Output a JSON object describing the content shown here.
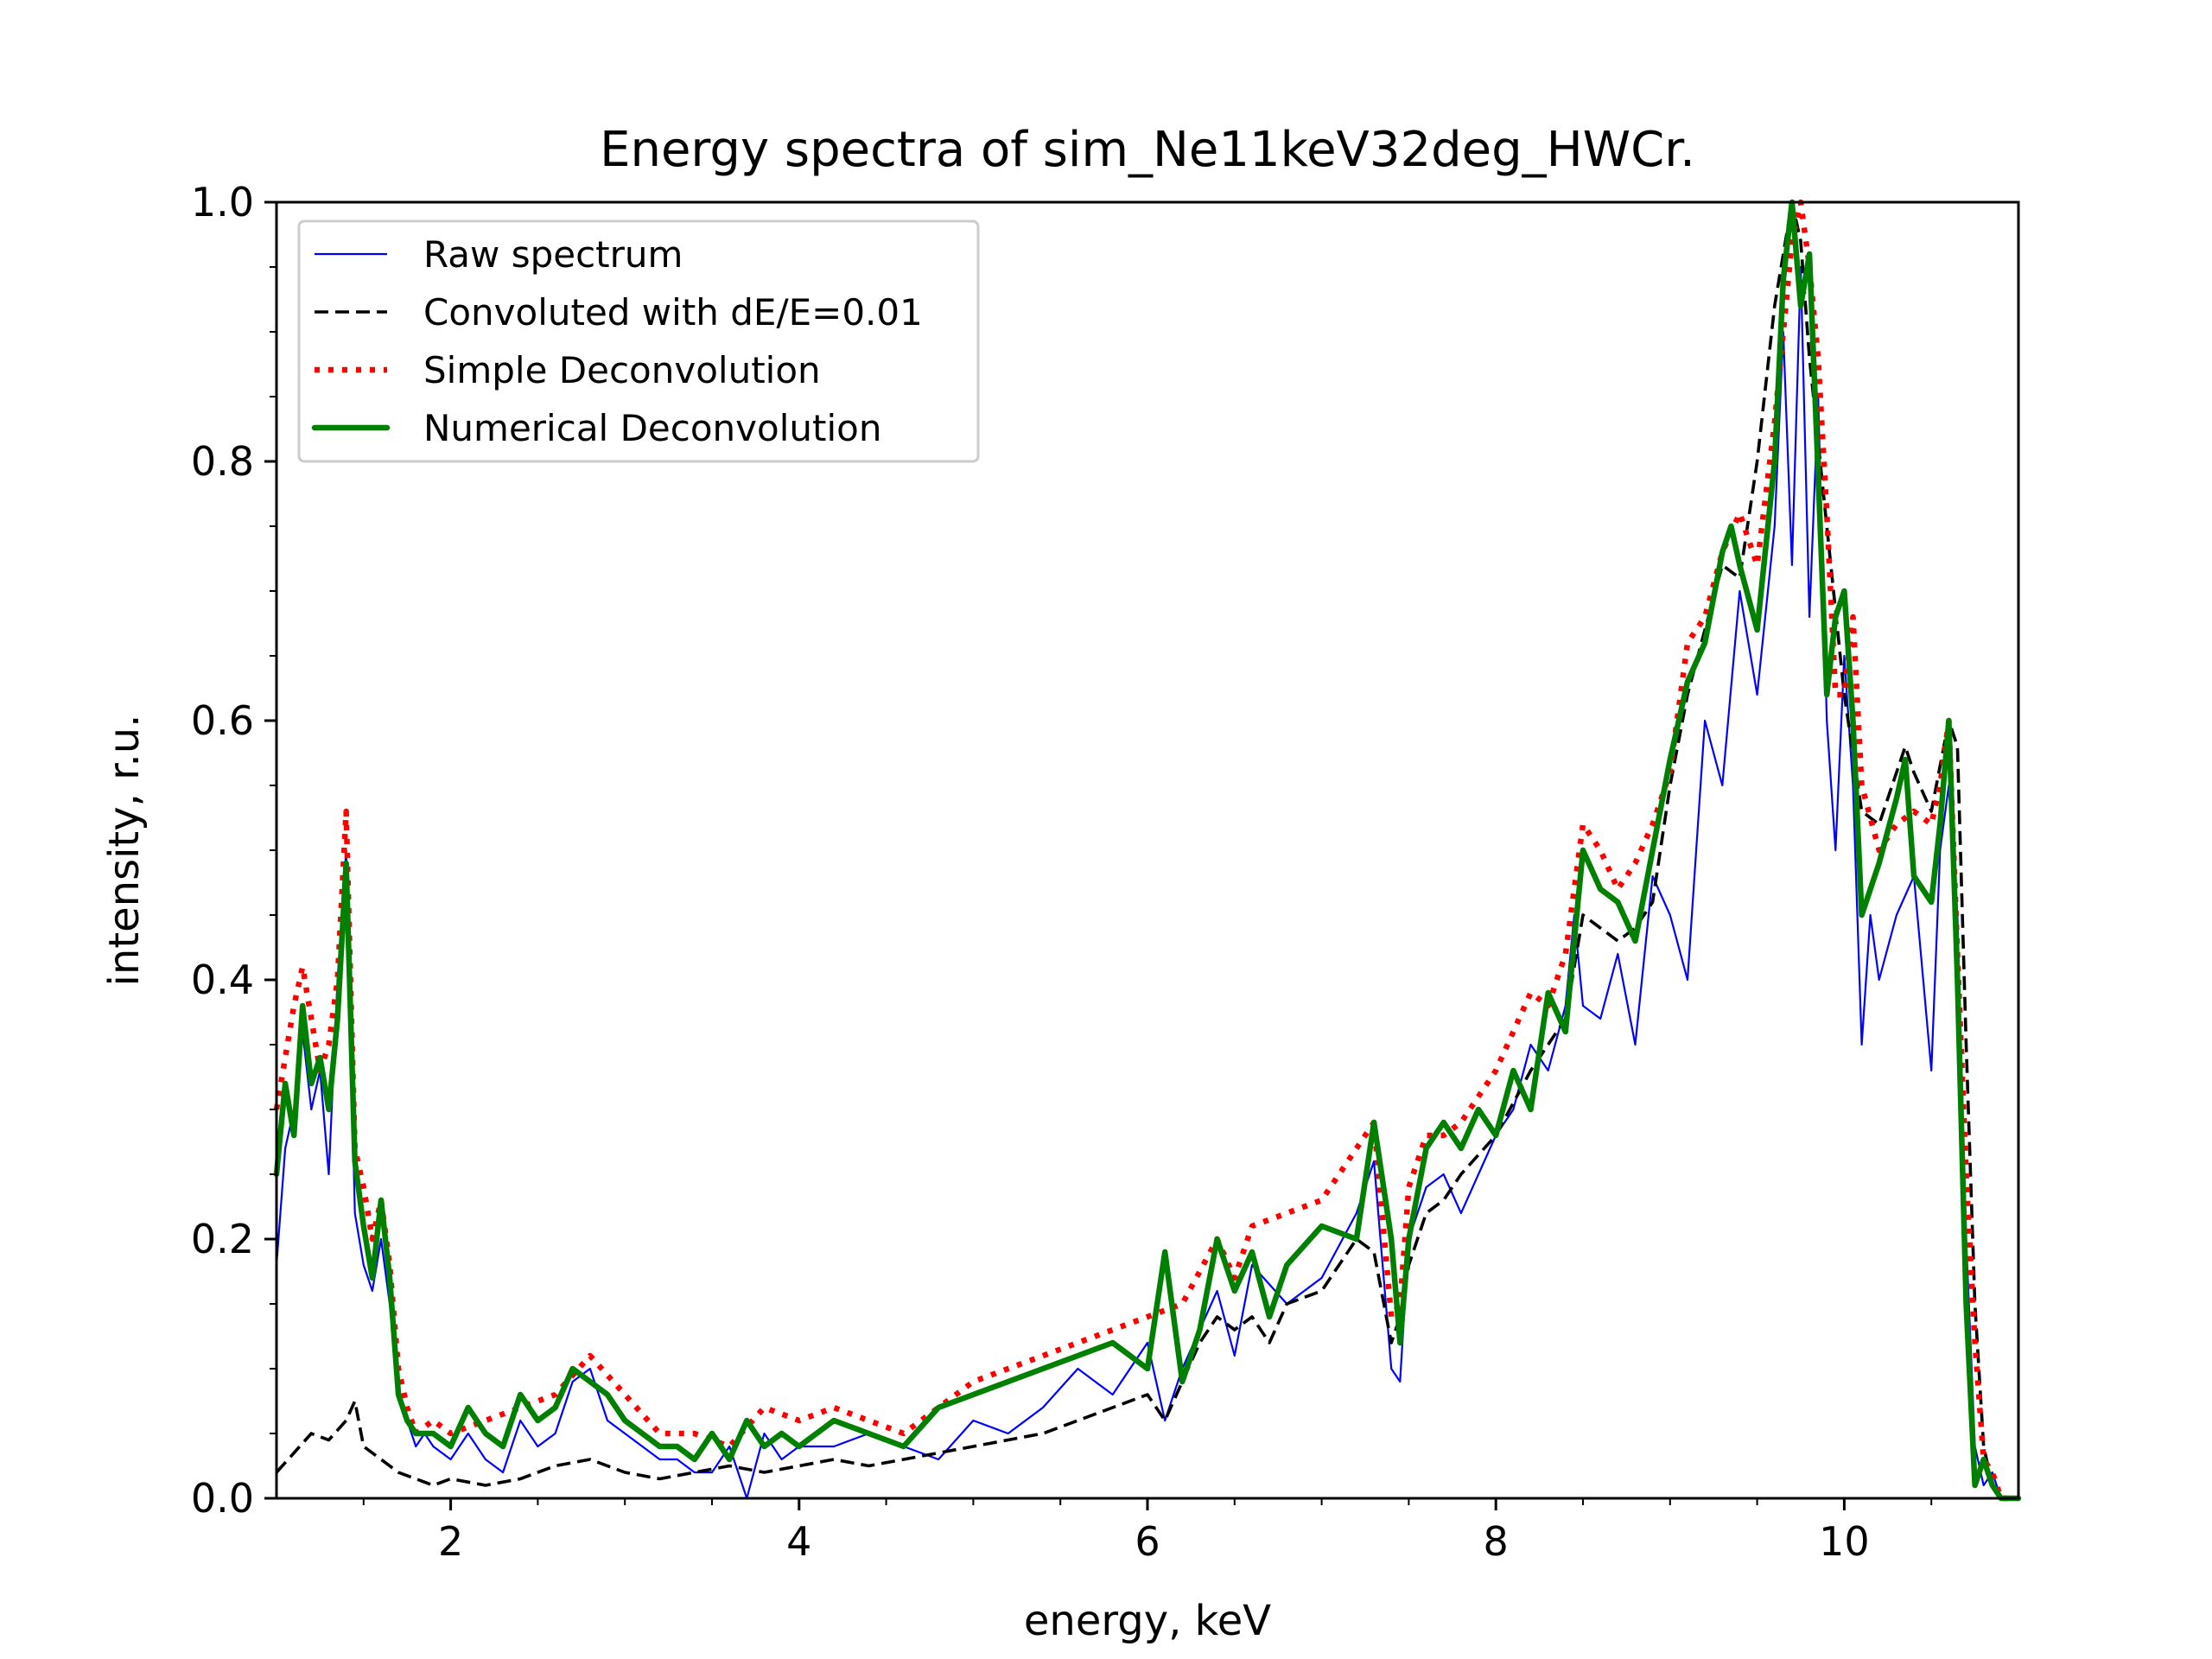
{
  "chart_data": {
    "type": "line",
    "title": "Energy spectra of sim_Ne11keV32deg_HWCr.",
    "xlabel": "energy, keV",
    "ylabel": "intensity, r.u.",
    "xlim": [
      1.0,
      11.0
    ],
    "ylim": [
      0.0,
      1.0
    ],
    "xticks": [
      2,
      4,
      6,
      8,
      10
    ],
    "xtick_labels": [
      "2",
      "4",
      "6",
      "8",
      "10"
    ],
    "yticks": [
      0.0,
      0.2,
      0.4,
      0.6,
      0.8,
      1.0
    ],
    "ytick_labels": [
      "0.0",
      "0.2",
      "0.4",
      "0.6",
      "0.8",
      "1.0"
    ],
    "grid": false,
    "legend_position": "top-left",
    "series": [
      {
        "name": "Raw spectrum",
        "color": "#0000ff",
        "style": "solid-thin",
        "x": [
          1.0,
          1.05,
          1.1,
          1.15,
          1.2,
          1.25,
          1.3,
          1.35,
          1.4,
          1.45,
          1.5,
          1.55,
          1.6,
          1.65,
          1.7,
          1.75,
          1.8,
          1.85,
          1.9,
          2.0,
          2.1,
          2.2,
          2.3,
          2.4,
          2.5,
          2.6,
          2.7,
          2.8,
          2.9,
          3.0,
          3.1,
          3.2,
          3.3,
          3.4,
          3.5,
          3.6,
          3.7,
          3.8,
          3.9,
          4.0,
          4.2,
          4.4,
          4.6,
          4.8,
          5.0,
          5.2,
          5.4,
          5.6,
          5.8,
          6.0,
          6.1,
          6.2,
          6.4,
          6.5,
          6.6,
          6.8,
          7.0,
          7.2,
          7.3,
          7.4,
          7.45,
          7.5,
          7.6,
          7.7,
          7.8,
          8.0,
          8.1,
          8.2,
          8.3,
          8.4,
          8.45,
          8.5,
          8.6,
          8.7,
          8.8,
          8.9,
          9.0,
          9.1,
          9.2,
          9.3,
          9.4,
          9.5,
          9.6,
          9.65,
          9.7,
          9.75,
          9.8,
          9.85,
          9.9,
          9.95,
          10.0,
          10.05,
          10.1,
          10.15,
          10.2,
          10.3,
          10.4,
          10.5,
          10.55,
          10.6,
          10.65,
          10.7,
          10.75,
          10.8,
          10.85,
          10.9,
          10.95,
          11.0
        ],
        "values": [
          0.18,
          0.27,
          0.3,
          0.36,
          0.3,
          0.33,
          0.25,
          0.4,
          0.5,
          0.22,
          0.18,
          0.16,
          0.2,
          0.15,
          0.08,
          0.06,
          0.04,
          0.05,
          0.04,
          0.03,
          0.05,
          0.03,
          0.02,
          0.06,
          0.04,
          0.05,
          0.09,
          0.1,
          0.06,
          0.05,
          0.04,
          0.03,
          0.03,
          0.02,
          0.02,
          0.04,
          0.0,
          0.05,
          0.03,
          0.04,
          0.04,
          0.05,
          0.04,
          0.03,
          0.06,
          0.05,
          0.07,
          0.1,
          0.08,
          0.12,
          0.06,
          0.1,
          0.16,
          0.11,
          0.18,
          0.15,
          0.17,
          0.22,
          0.26,
          0.1,
          0.09,
          0.2,
          0.24,
          0.25,
          0.22,
          0.28,
          0.3,
          0.35,
          0.33,
          0.38,
          0.45,
          0.38,
          0.37,
          0.42,
          0.35,
          0.48,
          0.45,
          0.4,
          0.6,
          0.55,
          0.7,
          0.62,
          0.75,
          0.9,
          0.72,
          0.95,
          0.68,
          0.85,
          0.6,
          0.5,
          0.65,
          0.55,
          0.35,
          0.45,
          0.4,
          0.45,
          0.48,
          0.33,
          0.5,
          0.55,
          0.45,
          0.2,
          0.04,
          0.01,
          0.02,
          0.0,
          0.0,
          0.0
        ]
      },
      {
        "name": "Convoluted with dE/E=0.01",
        "color": "#000000",
        "style": "dashed",
        "x": [
          1.0,
          1.1,
          1.2,
          1.3,
          1.4,
          1.45,
          1.5,
          1.6,
          1.7,
          1.8,
          1.9,
          2.0,
          2.2,
          2.4,
          2.6,
          2.8,
          3.0,
          3.2,
          3.4,
          3.6,
          3.8,
          4.0,
          4.2,
          4.4,
          4.6,
          4.8,
          5.0,
          5.2,
          5.4,
          5.6,
          5.8,
          6.0,
          6.1,
          6.2,
          6.3,
          6.4,
          6.5,
          6.6,
          6.7,
          6.8,
          7.0,
          7.2,
          7.3,
          7.4,
          7.45,
          7.5,
          7.6,
          7.7,
          7.8,
          8.0,
          8.2,
          8.4,
          8.5,
          8.6,
          8.7,
          8.8,
          8.9,
          9.0,
          9.1,
          9.2,
          9.3,
          9.4,
          9.5,
          9.6,
          9.7,
          9.75,
          9.8,
          9.9,
          10.0,
          10.1,
          10.2,
          10.3,
          10.35,
          10.4,
          10.5,
          10.6,
          10.65,
          10.7,
          10.75,
          10.8,
          10.85,
          10.9,
          11.0
        ],
        "values": [
          0.02,
          0.035,
          0.05,
          0.045,
          0.06,
          0.075,
          0.04,
          0.03,
          0.02,
          0.015,
          0.01,
          0.015,
          0.01,
          0.015,
          0.025,
          0.03,
          0.02,
          0.015,
          0.02,
          0.025,
          0.02,
          0.025,
          0.03,
          0.025,
          0.03,
          0.035,
          0.04,
          0.045,
          0.05,
          0.06,
          0.07,
          0.08,
          0.06,
          0.09,
          0.12,
          0.14,
          0.13,
          0.14,
          0.12,
          0.15,
          0.16,
          0.2,
          0.19,
          0.12,
          0.14,
          0.18,
          0.22,
          0.23,
          0.25,
          0.28,
          0.33,
          0.37,
          0.45,
          0.44,
          0.43,
          0.44,
          0.46,
          0.55,
          0.62,
          0.67,
          0.72,
          0.71,
          0.8,
          0.92,
          1.0,
          0.97,
          0.88,
          0.75,
          0.62,
          0.53,
          0.52,
          0.56,
          0.58,
          0.56,
          0.53,
          0.6,
          0.58,
          0.35,
          0.15,
          0.04,
          0.01,
          0.0,
          0.0
        ]
      },
      {
        "name": "Simple Deconvolution",
        "color": "#ff0000",
        "style": "dotted",
        "x": [
          1.0,
          1.05,
          1.1,
          1.15,
          1.2,
          1.25,
          1.3,
          1.35,
          1.4,
          1.45,
          1.5,
          1.55,
          1.6,
          1.65,
          1.7,
          1.75,
          1.8,
          1.9,
          2.0,
          2.2,
          2.4,
          2.6,
          2.8,
          3.0,
          3.2,
          3.4,
          3.6,
          3.8,
          4.0,
          4.2,
          4.4,
          4.6,
          4.8,
          5.0,
          5.2,
          5.4,
          5.6,
          5.8,
          6.0,
          6.2,
          6.4,
          6.5,
          6.6,
          6.8,
          7.0,
          7.2,
          7.3,
          7.4,
          7.45,
          7.5,
          7.6,
          7.7,
          7.8,
          8.0,
          8.2,
          8.3,
          8.4,
          8.5,
          8.6,
          8.7,
          8.8,
          8.9,
          9.0,
          9.1,
          9.2,
          9.3,
          9.4,
          9.5,
          9.6,
          9.7,
          9.75,
          9.8,
          9.85,
          9.9,
          9.95,
          10.0,
          10.05,
          10.1,
          10.2,
          10.3,
          10.4,
          10.5,
          10.55,
          10.6,
          10.65,
          10.7,
          10.75,
          10.8,
          10.85,
          10.9,
          11.0
        ],
        "values": [
          0.3,
          0.34,
          0.38,
          0.41,
          0.37,
          0.33,
          0.35,
          0.4,
          0.53,
          0.27,
          0.24,
          0.2,
          0.23,
          0.18,
          0.1,
          0.07,
          0.05,
          0.06,
          0.05,
          0.06,
          0.07,
          0.08,
          0.11,
          0.08,
          0.05,
          0.05,
          0.04,
          0.07,
          0.06,
          0.07,
          0.06,
          0.05,
          0.07,
          0.09,
          0.1,
          0.11,
          0.12,
          0.13,
          0.14,
          0.15,
          0.2,
          0.17,
          0.21,
          0.22,
          0.23,
          0.27,
          0.29,
          0.14,
          0.15,
          0.24,
          0.28,
          0.28,
          0.29,
          0.33,
          0.39,
          0.38,
          0.42,
          0.52,
          0.5,
          0.47,
          0.49,
          0.52,
          0.56,
          0.66,
          0.68,
          0.73,
          0.76,
          0.72,
          0.83,
          0.97,
          1.0,
          0.95,
          0.88,
          0.76,
          0.62,
          0.62,
          0.68,
          0.55,
          0.5,
          0.52,
          0.53,
          0.52,
          0.55,
          0.6,
          0.42,
          0.25,
          0.12,
          0.03,
          0.02,
          0.0,
          0.0
        ]
      },
      {
        "name": "Numerical Deconvolution",
        "color": "#008000",
        "style": "solid-thick",
        "x": [
          1.0,
          1.05,
          1.1,
          1.15,
          1.2,
          1.25,
          1.3,
          1.35,
          1.4,
          1.45,
          1.5,
          1.55,
          1.6,
          1.65,
          1.7,
          1.75,
          1.8,
          1.9,
          2.0,
          2.1,
          2.2,
          2.3,
          2.4,
          2.5,
          2.6,
          2.7,
          2.8,
          2.9,
          3.0,
          3.1,
          3.2,
          3.3,
          3.4,
          3.5,
          3.6,
          3.7,
          3.8,
          3.9,
          4.0,
          4.2,
          4.4,
          4.6,
          4.8,
          5.0,
          5.2,
          5.4,
          5.6,
          5.8,
          6.0,
          6.1,
          6.2,
          6.3,
          6.4,
          6.5,
          6.6,
          6.7,
          6.8,
          7.0,
          7.2,
          7.3,
          7.4,
          7.45,
          7.5,
          7.6,
          7.7,
          7.8,
          7.9,
          8.0,
          8.1,
          8.2,
          8.3,
          8.4,
          8.5,
          8.6,
          8.7,
          8.8,
          8.9,
          9.0,
          9.1,
          9.2,
          9.3,
          9.35,
          9.4,
          9.5,
          9.6,
          9.65,
          9.7,
          9.75,
          9.8,
          9.85,
          9.9,
          9.95,
          10.0,
          10.05,
          10.1,
          10.2,
          10.3,
          10.35,
          10.4,
          10.5,
          10.55,
          10.6,
          10.65,
          10.7,
          10.75,
          10.8,
          10.85,
          10.9,
          11.0
        ],
        "values": [
          0.25,
          0.32,
          0.28,
          0.38,
          0.32,
          0.34,
          0.3,
          0.37,
          0.49,
          0.26,
          0.21,
          0.17,
          0.23,
          0.17,
          0.08,
          0.06,
          0.05,
          0.05,
          0.04,
          0.07,
          0.05,
          0.04,
          0.08,
          0.06,
          0.07,
          0.1,
          0.09,
          0.08,
          0.06,
          0.05,
          0.04,
          0.04,
          0.03,
          0.05,
          0.03,
          0.06,
          0.04,
          0.05,
          0.04,
          0.06,
          0.05,
          0.04,
          0.07,
          0.08,
          0.09,
          0.1,
          0.11,
          0.12,
          0.1,
          0.19,
          0.09,
          0.13,
          0.2,
          0.16,
          0.19,
          0.14,
          0.18,
          0.21,
          0.2,
          0.29,
          0.2,
          0.12,
          0.2,
          0.27,
          0.29,
          0.27,
          0.3,
          0.28,
          0.33,
          0.3,
          0.39,
          0.36,
          0.5,
          0.47,
          0.46,
          0.43,
          0.5,
          0.57,
          0.63,
          0.66,
          0.73,
          0.75,
          0.72,
          0.67,
          0.8,
          0.94,
          1.0,
          0.92,
          0.96,
          0.79,
          0.62,
          0.68,
          0.7,
          0.6,
          0.45,
          0.49,
          0.54,
          0.57,
          0.48,
          0.46,
          0.52,
          0.6,
          0.4,
          0.15,
          0.01,
          0.03,
          0.01,
          0.0,
          0.0
        ]
      }
    ]
  }
}
